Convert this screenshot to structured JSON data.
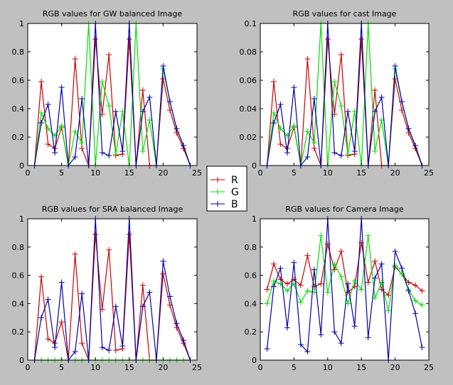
{
  "figure": {
    "background": "#c0c0c0",
    "colors": {
      "R": "#cc0000",
      "G": "#00e000",
      "B": "#0000aa"
    }
  },
  "legend": {
    "entries": [
      {
        "label": "R",
        "color": "#cc0000"
      },
      {
        "label": "G",
        "color": "#00e000"
      },
      {
        "label": "B",
        "color": "#0000aa"
      }
    ]
  },
  "chart_data": [
    {
      "id": "gw",
      "type": "line",
      "title": "RGB values for GW balanced Image",
      "xlabel": "",
      "ylabel": "",
      "xlim": [
        0,
        25
      ],
      "ylim": [
        0,
        1
      ],
      "xticks": [
        0,
        5,
        10,
        15,
        20,
        25
      ],
      "yticks": [
        0,
        0.2,
        0.4,
        0.6,
        0.8,
        1
      ],
      "ytick_labels": [
        "0",
        "0.2",
        "0.4",
        "0.6",
        "0.8",
        "1"
      ],
      "x": [
        1,
        2,
        3,
        4,
        5,
        6,
        7,
        8,
        9,
        10,
        11,
        12,
        13,
        14,
        15,
        16,
        17,
        18,
        19,
        20,
        21,
        22,
        23,
        24
      ],
      "series": [
        {
          "name": "R",
          "values": [
            0,
            0.59,
            0.15,
            0.12,
            0.27,
            0,
            0.75,
            0.12,
            0,
            0.89,
            0.36,
            0.78,
            0.07,
            0.08,
            0.89,
            0,
            0.53,
            0,
            0,
            0.61,
            0.39,
            0.23,
            0.12,
            0
          ]
        },
        {
          "name": "G",
          "values": [
            0,
            0.37,
            0.26,
            0.21,
            0.28,
            0,
            0.24,
            0.16,
            1.0,
            0,
            0.59,
            0.42,
            0.08,
            0.38,
            0,
            1.0,
            0.1,
            0.32,
            0,
            0.68,
            0.45,
            0.26,
            0.14,
            0
          ]
        },
        {
          "name": "B",
          "values": [
            0,
            0.3,
            0.43,
            0.09,
            0.55,
            0,
            0.06,
            0.47,
            0,
            1.0,
            0.09,
            0.07,
            0.38,
            0.1,
            1.0,
            0,
            0.38,
            0.48,
            0,
            0.7,
            0.45,
            0.26,
            0.14,
            0
          ]
        }
      ]
    },
    {
      "id": "cast",
      "type": "line",
      "title": "RGB values for cast Image",
      "xlabel": "",
      "ylabel": "",
      "xlim": [
        0,
        25
      ],
      "ylim": [
        0,
        0.1
      ],
      "xticks": [
        0,
        5,
        10,
        15,
        20,
        25
      ],
      "yticks": [
        0,
        0.02,
        0.04,
        0.06,
        0.08,
        0.1
      ],
      "ytick_labels": [
        "0",
        "0.02",
        "0.04",
        "0.06",
        "0.08",
        "0.1"
      ],
      "x": [
        1,
        2,
        3,
        4,
        5,
        6,
        7,
        8,
        9,
        10,
        11,
        12,
        13,
        14,
        15,
        16,
        17,
        18,
        19,
        20,
        21,
        22,
        23,
        24
      ],
      "series": [
        {
          "name": "R",
          "values": [
            0,
            0.059,
            0.015,
            0.012,
            0.027,
            0,
            0.075,
            0.012,
            0,
            0.089,
            0.036,
            0.078,
            0.007,
            0.008,
            0.089,
            0,
            0.053,
            0,
            0,
            0.061,
            0.039,
            0.023,
            0.012,
            0
          ]
        },
        {
          "name": "G",
          "values": [
            0,
            0.037,
            0.026,
            0.021,
            0.028,
            0,
            0.024,
            0.016,
            0.1,
            0,
            0.059,
            0.042,
            0.008,
            0.038,
            0,
            0.1,
            0.01,
            0.032,
            0,
            0.068,
            0.045,
            0.026,
            0.014,
            0
          ]
        },
        {
          "name": "B",
          "values": [
            0,
            0.03,
            0.043,
            0.009,
            0.055,
            0,
            0.006,
            0.047,
            0,
            0.1,
            0.009,
            0.007,
            0.038,
            0.01,
            0.1,
            0,
            0.038,
            0.048,
            0,
            0.07,
            0.045,
            0.026,
            0.014,
            0
          ]
        }
      ]
    },
    {
      "id": "sra",
      "type": "line",
      "title": "RGB values for SRA balanced Image",
      "xlabel": "",
      "ylabel": "",
      "xlim": [
        0,
        25
      ],
      "ylim": [
        0,
        1
      ],
      "xticks": [
        0,
        5,
        10,
        15,
        20,
        25
      ],
      "yticks": [
        0,
        0.2,
        0.4,
        0.6,
        0.8,
        1
      ],
      "ytick_labels": [
        "0",
        "0.2",
        "0.4",
        "0.6",
        "0.8",
        "1"
      ],
      "x": [
        1,
        2,
        3,
        4,
        5,
        6,
        7,
        8,
        9,
        10,
        11,
        12,
        13,
        14,
        15,
        16,
        17,
        18,
        19,
        20,
        21,
        22,
        23,
        24
      ],
      "series": [
        {
          "name": "R",
          "values": [
            0,
            0.59,
            0.15,
            0.12,
            0.27,
            0,
            0.75,
            0.12,
            0,
            0.89,
            0.36,
            0.78,
            0.07,
            0.08,
            0.89,
            0,
            0.53,
            0,
            0,
            0.61,
            0.39,
            0.23,
            0.12,
            0
          ]
        },
        {
          "name": "G",
          "values": [
            0,
            0,
            0,
            0,
            0,
            0,
            0,
            0,
            0,
            0,
            0,
            0,
            0,
            0,
            0,
            0,
            0,
            0,
            0,
            0,
            0,
            0,
            0,
            0
          ]
        },
        {
          "name": "B",
          "values": [
            0,
            0.3,
            0.43,
            0.09,
            0.55,
            0,
            0.06,
            0.47,
            0,
            1.0,
            0.09,
            0.07,
            0.38,
            0.1,
            1.0,
            0,
            0.38,
            0.48,
            0,
            0.7,
            0.45,
            0.26,
            0.14,
            0
          ]
        }
      ]
    },
    {
      "id": "camera",
      "type": "line",
      "title": "RGB values for Camera Image",
      "xlabel": "",
      "ylabel": "",
      "xlim": [
        0,
        25
      ],
      "ylim": [
        0,
        1
      ],
      "xticks": [
        0,
        5,
        10,
        15,
        20,
        25
      ],
      "yticks": [
        0,
        0.2,
        0.4,
        0.6,
        0.8,
        1
      ],
      "ytick_labels": [
        "0",
        "0.2",
        "0.4",
        "0.6",
        "0.8",
        "1"
      ],
      "x": [
        1,
        2,
        3,
        4,
        5,
        6,
        7,
        8,
        9,
        10,
        11,
        12,
        13,
        14,
        15,
        16,
        17,
        18,
        19,
        20,
        21,
        22,
        23,
        24
      ],
      "series": [
        {
          "name": "R",
          "values": [
            0.5,
            0.68,
            0.57,
            0.54,
            0.57,
            0.53,
            0.74,
            0.52,
            0.54,
            0.82,
            0.64,
            0.77,
            0.48,
            0.52,
            0.83,
            0.55,
            0.7,
            0.5,
            0.46,
            0.66,
            0.61,
            0.55,
            0.53,
            0.49
          ]
        },
        {
          "name": "G",
          "values": [
            0.4,
            0.56,
            0.54,
            0.49,
            0.54,
            0.41,
            0.49,
            0.48,
            0.88,
            0.48,
            0.68,
            0.59,
            0.4,
            0.56,
            0.5,
            0.88,
            0.44,
            0.55,
            0.35,
            0.67,
            0.61,
            0.5,
            0.42,
            0.39
          ]
        },
        {
          "name": "B",
          "values": [
            0.08,
            0.52,
            0.65,
            0.23,
            0.69,
            0.11,
            0.06,
            0.64,
            0.18,
            1.0,
            0.2,
            0.12,
            0.54,
            0.24,
            1.0,
            0.16,
            0.58,
            0.68,
            0.0,
            0.77,
            0.65,
            0.49,
            0.33,
            0.09
          ]
        }
      ]
    }
  ]
}
